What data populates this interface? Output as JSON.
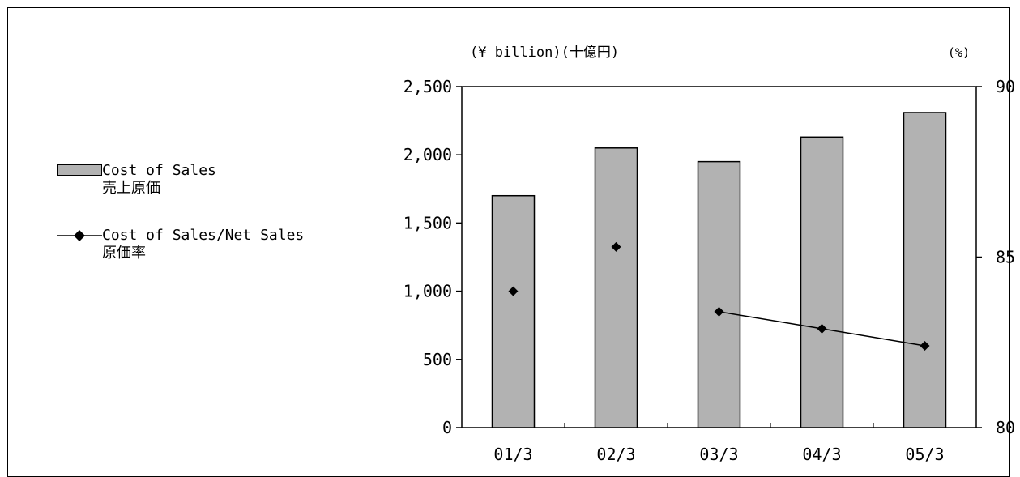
{
  "chart_data": {
    "type": "bar",
    "categories": [
      "01/3",
      "02/3",
      "03/3",
      "04/3",
      "05/3"
    ],
    "series": [
      {
        "name": "Cost of Sales",
        "name_ja": "売上原価",
        "type": "bar",
        "axis": "left",
        "values": [
          1700,
          2050,
          1950,
          2130,
          2310
        ],
        "color": "#b2b2b2"
      },
      {
        "name": "Cost of Sales/Net Sales",
        "name_ja": "原価率",
        "type": "line",
        "axis": "right",
        "values": [
          84.0,
          85.3,
          83.4,
          82.9,
          82.4
        ],
        "connected_from_index": 2,
        "color": "#000000"
      }
    ],
    "left_axis": {
      "unit_label": "(¥ billion)(十億円)",
      "ylim": [
        0,
        2500
      ],
      "ticks": [
        0,
        500,
        1000,
        1500,
        2000,
        2500
      ],
      "tick_labels": [
        "0",
        "500",
        "1,000",
        "1,500",
        "2,000",
        "2,500"
      ]
    },
    "right_axis": {
      "unit_label": "(%)",
      "ylim": [
        80,
        90
      ],
      "ticks": [
        80,
        85,
        90
      ],
      "tick_labels": [
        "80",
        "85",
        "90"
      ]
    },
    "grid": false,
    "legend_position": "left"
  }
}
